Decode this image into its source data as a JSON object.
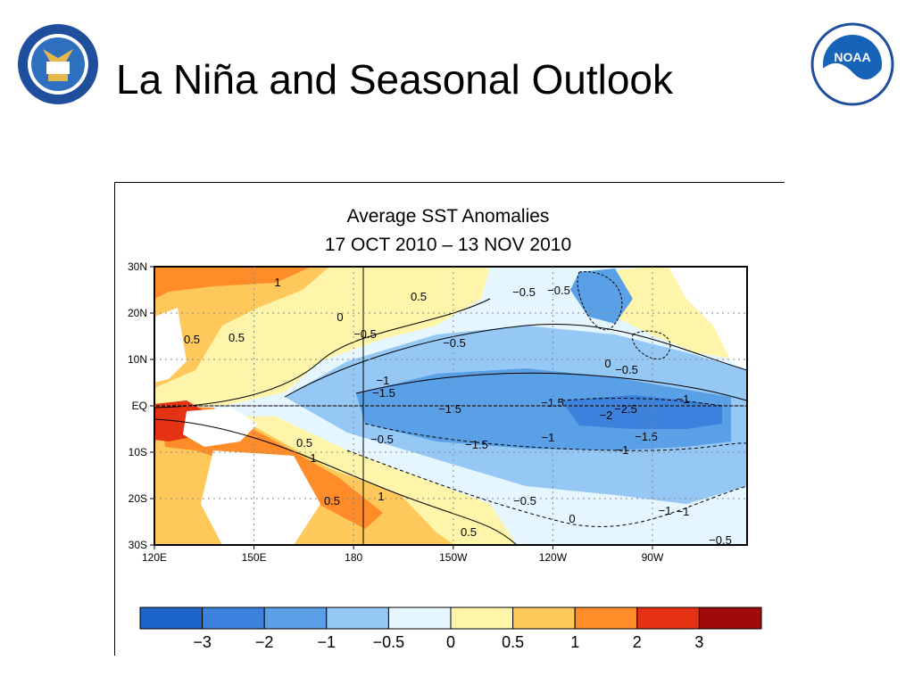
{
  "slide": {
    "title": "La Niña and Seasonal Outlook",
    "logos": [
      {
        "name": "commerce-seal-icon",
        "text": "DEPARTMENT OF COMMERCE · UNITED STATES OF AMERICA"
      },
      {
        "name": "noaa-logo-icon",
        "text": "NOAA"
      }
    ]
  },
  "chart_data": {
    "type": "heatmap",
    "title": "Average SST Anomalies",
    "subtitle": "17 OCT 2010 – 13 NOV 2010",
    "x_ticks": [
      "120E",
      "150E",
      "180",
      "150W",
      "120W",
      "90W"
    ],
    "y_ticks": [
      "30N",
      "20N",
      "10N",
      "EQ",
      "10S",
      "20S",
      "30S"
    ],
    "grid": true,
    "colorbar": {
      "labels": [
        "−3",
        "−2",
        "−1",
        "−0.5",
        "0",
        "0.5",
        "1",
        "2",
        "3"
      ],
      "colors": [
        "#1c64c8",
        "#3c82dc",
        "#5aa0e6",
        "#96c8f5",
        "#e6f6ff",
        "#fff5aa",
        "#ffc85a",
        "#ff8c28",
        "#e63214",
        "#a00a0a"
      ]
    },
    "contour_labels": [
      "1",
      "0.5",
      "−0.5",
      "−0.5",
      "0",
      "−0.5",
      "0.5",
      "0.5",
      "−0.5",
      "0",
      "−0.5",
      "−1",
      "−1.5",
      "−1.5",
      "−1.5",
      "−2",
      "−2.5",
      "−1",
      "−1.5",
      "−1",
      "−1",
      "−1.5",
      "−0.5",
      "0.5",
      "1",
      "0.5",
      "1",
      "0.5",
      "−0.5",
      "0",
      "−1",
      "−0.5",
      "−1"
    ]
  }
}
